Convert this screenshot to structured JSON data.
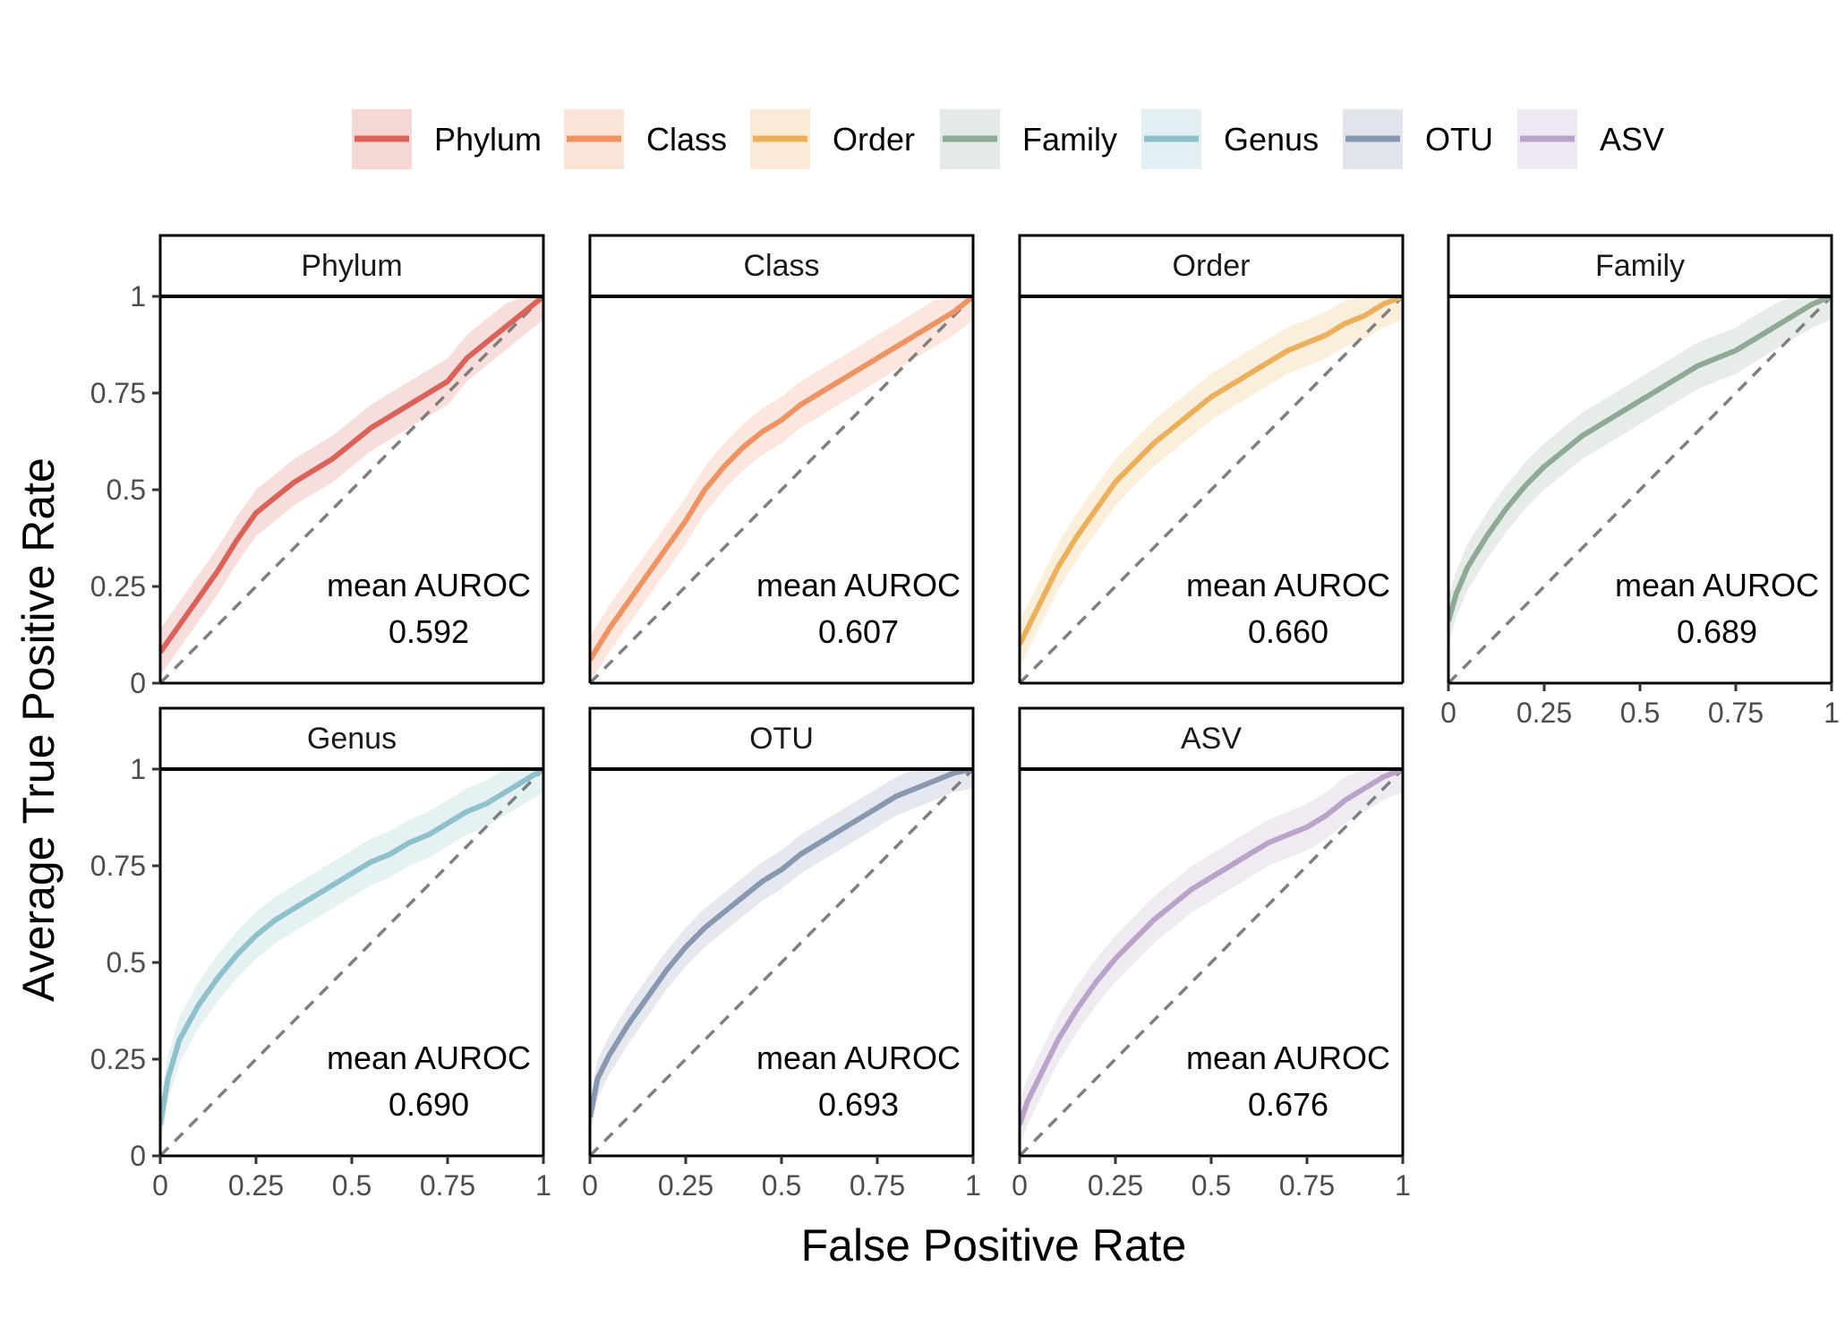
{
  "chart_data": {
    "type": "line",
    "xlabel": "False Positive Rate",
    "ylabel": "Average True Positive Rate",
    "xlim": [
      0,
      1
    ],
    "ylim": [
      0,
      1
    ],
    "tick_labels": [
      "0",
      "0.25",
      "0.5",
      "0.75",
      "1"
    ],
    "tick_values": [
      0,
      0.25,
      0.5,
      0.75,
      1
    ],
    "grid": false,
    "legend_position": "top",
    "reference_line": "diagonal y = x, dashed grey",
    "annotation_label": "mean AUROC",
    "panels": [
      {
        "name": "Phylum",
        "color": "#D9625B",
        "auroc": "0.592",
        "x": [
          0,
          0.05,
          0.1,
          0.15,
          0.2,
          0.25,
          0.3,
          0.35,
          0.4,
          0.45,
          0.5,
          0.55,
          0.6,
          0.65,
          0.7,
          0.75,
          0.8,
          0.85,
          0.9,
          0.95,
          1
        ],
        "y": [
          0.08,
          0.15,
          0.22,
          0.29,
          0.37,
          0.44,
          0.48,
          0.52,
          0.55,
          0.58,
          0.62,
          0.66,
          0.69,
          0.72,
          0.75,
          0.78,
          0.84,
          0.88,
          0.92,
          0.96,
          1
        ],
        "band": 0.06
      },
      {
        "name": "Class",
        "color": "#EE9363",
        "auroc": "0.607",
        "x": [
          0,
          0.05,
          0.1,
          0.15,
          0.2,
          0.25,
          0.3,
          0.35,
          0.4,
          0.45,
          0.5,
          0.55,
          0.6,
          0.65,
          0.7,
          0.75,
          0.8,
          0.85,
          0.9,
          0.95,
          1
        ],
        "y": [
          0.06,
          0.14,
          0.21,
          0.28,
          0.35,
          0.42,
          0.5,
          0.56,
          0.61,
          0.65,
          0.68,
          0.72,
          0.75,
          0.78,
          0.81,
          0.84,
          0.87,
          0.9,
          0.93,
          0.96,
          1
        ],
        "band": 0.06
      },
      {
        "name": "Order",
        "color": "#EBB05C",
        "auroc": "0.660",
        "x": [
          0,
          0.05,
          0.1,
          0.15,
          0.2,
          0.25,
          0.3,
          0.35,
          0.4,
          0.45,
          0.5,
          0.55,
          0.6,
          0.65,
          0.7,
          0.75,
          0.8,
          0.85,
          0.9,
          0.95,
          1
        ],
        "y": [
          0.1,
          0.2,
          0.3,
          0.38,
          0.45,
          0.52,
          0.57,
          0.62,
          0.66,
          0.7,
          0.74,
          0.77,
          0.8,
          0.83,
          0.86,
          0.88,
          0.9,
          0.93,
          0.95,
          0.98,
          1
        ],
        "band": 0.06
      },
      {
        "name": "Family",
        "color": "#8EA995",
        "auroc": "0.689",
        "x": [
          0,
          0.02,
          0.05,
          0.1,
          0.15,
          0.2,
          0.25,
          0.3,
          0.35,
          0.4,
          0.45,
          0.5,
          0.55,
          0.6,
          0.65,
          0.7,
          0.75,
          0.8,
          0.85,
          0.9,
          0.95,
          1
        ],
        "y": [
          0.16,
          0.23,
          0.3,
          0.38,
          0.45,
          0.51,
          0.56,
          0.6,
          0.64,
          0.67,
          0.7,
          0.73,
          0.76,
          0.79,
          0.82,
          0.84,
          0.86,
          0.89,
          0.92,
          0.95,
          0.98,
          1
        ],
        "band": 0.06
      },
      {
        "name": "Genus",
        "color": "#8EC1CB",
        "auroc": "0.690",
        "x": [
          0,
          0.02,
          0.05,
          0.1,
          0.15,
          0.2,
          0.25,
          0.3,
          0.35,
          0.4,
          0.45,
          0.5,
          0.55,
          0.6,
          0.65,
          0.7,
          0.75,
          0.8,
          0.85,
          0.9,
          0.95,
          1
        ],
        "y": [
          0.08,
          0.2,
          0.3,
          0.39,
          0.46,
          0.52,
          0.57,
          0.61,
          0.64,
          0.67,
          0.7,
          0.73,
          0.76,
          0.78,
          0.81,
          0.83,
          0.86,
          0.89,
          0.91,
          0.94,
          0.97,
          1
        ],
        "band": 0.06
      },
      {
        "name": "OTU",
        "color": "#8898B1",
        "auroc": "0.693",
        "x": [
          0,
          0.02,
          0.05,
          0.1,
          0.15,
          0.2,
          0.25,
          0.3,
          0.35,
          0.4,
          0.45,
          0.5,
          0.55,
          0.6,
          0.65,
          0.7,
          0.75,
          0.8,
          0.85,
          0.9,
          0.95,
          1
        ],
        "y": [
          0.1,
          0.2,
          0.26,
          0.34,
          0.41,
          0.48,
          0.54,
          0.59,
          0.63,
          0.67,
          0.71,
          0.74,
          0.78,
          0.81,
          0.84,
          0.87,
          0.9,
          0.93,
          0.95,
          0.97,
          0.99,
          1
        ],
        "band": 0.05
      },
      {
        "name": "ASV",
        "color": "#B9A3C9",
        "auroc": "0.676",
        "x": [
          0,
          0.02,
          0.05,
          0.1,
          0.15,
          0.2,
          0.25,
          0.3,
          0.35,
          0.4,
          0.45,
          0.5,
          0.55,
          0.6,
          0.65,
          0.7,
          0.75,
          0.8,
          0.85,
          0.9,
          0.95,
          1
        ],
        "y": [
          0.08,
          0.14,
          0.2,
          0.3,
          0.38,
          0.45,
          0.51,
          0.56,
          0.61,
          0.65,
          0.69,
          0.72,
          0.75,
          0.78,
          0.81,
          0.83,
          0.85,
          0.88,
          0.92,
          0.95,
          0.98,
          1
        ],
        "band": 0.06
      }
    ]
  }
}
